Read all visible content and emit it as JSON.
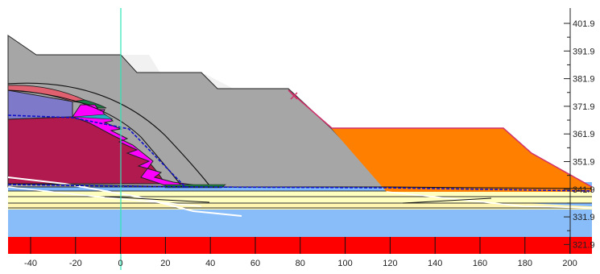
{
  "x_axis": {
    "ticks": [
      "-40",
      "-20",
      "0",
      "20",
      "40",
      "60",
      "80",
      "100",
      "120",
      "140",
      "160",
      "180",
      "200"
    ]
  },
  "y_axis": {
    "ticks": [
      "401.9",
      "391.9",
      "381.9",
      "371.9",
      "361.9",
      "351.9",
      "341.9",
      "331.9",
      "321.9"
    ]
  },
  "colors": {
    "embankment": "#a6a6a6",
    "fill_orange": "#ff8000",
    "crimson_zone": "#b01a4e",
    "magenta_zone": "#ff00ff",
    "purple_zone": "#7f79c9",
    "blue_foundation": "#7fb7ff",
    "cream_layer": "#ffffc0",
    "bedrock": "#ff0000",
    "phreatic_line": "#1010c8",
    "vertical_axis_line": "#2ee6b4"
  }
}
